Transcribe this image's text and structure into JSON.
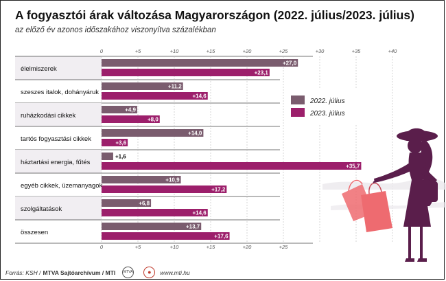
{
  "header": {
    "title": "A fogyasztói árak változása Magyarországon (2022. július/2023. július)",
    "subtitle": "az előző év azonos időszakához viszonyítva százalékban"
  },
  "footer": {
    "source": "Forrás: KSH /",
    "credit": "MTVA Sajtóarchívum / MTI",
    "logo1": "MTVA",
    "logo2": "●",
    "site": "www.mti.hu"
  },
  "colors": {
    "series2022": "#7a5c6e",
    "series2023": "#9c1f6b",
    "stripe": "#f1eef2",
    "figure": "#5a1e4b",
    "bags": "#ee6b70"
  },
  "chart_data": {
    "type": "bar",
    "orientation": "horizontal",
    "xlim": [
      0,
      40
    ],
    "ticks": [
      "0",
      "+5",
      "+10",
      "+15",
      "+20",
      "+25",
      "+30",
      "+35",
      "+40"
    ],
    "tick_values": [
      0,
      5,
      10,
      15,
      20,
      25,
      30,
      35,
      40
    ],
    "categories": [
      "élelmiszerek",
      "szeszes italok, dohányáruk",
      "ruházkodási cikkek",
      "tartós fogyasztási cikkek",
      "háztartási energia, fűtés",
      "egyéb cikkek, üzemanyagok",
      "szolgáltatások",
      "összesen"
    ],
    "series": [
      {
        "name": "2022. július",
        "values": [
          27.0,
          11.2,
          4.9,
          14.0,
          1.6,
          10.9,
          6.8,
          13.7
        ],
        "labels": [
          "+27,0",
          "+11,2",
          "+4,9",
          "+14,0",
          "+1,6",
          "+10,9",
          "+6,8",
          "+13,7"
        ]
      },
      {
        "name": "2023. július",
        "values": [
          23.1,
          14.6,
          8.0,
          3.6,
          35.7,
          17.2,
          14.6,
          17.6
        ],
        "labels": [
          "+23,1",
          "+14,6",
          "+8,0",
          "+3,6",
          "+35,7",
          "+17,2",
          "+14,6",
          "+17,6"
        ]
      }
    ],
    "legend_position": "right"
  }
}
